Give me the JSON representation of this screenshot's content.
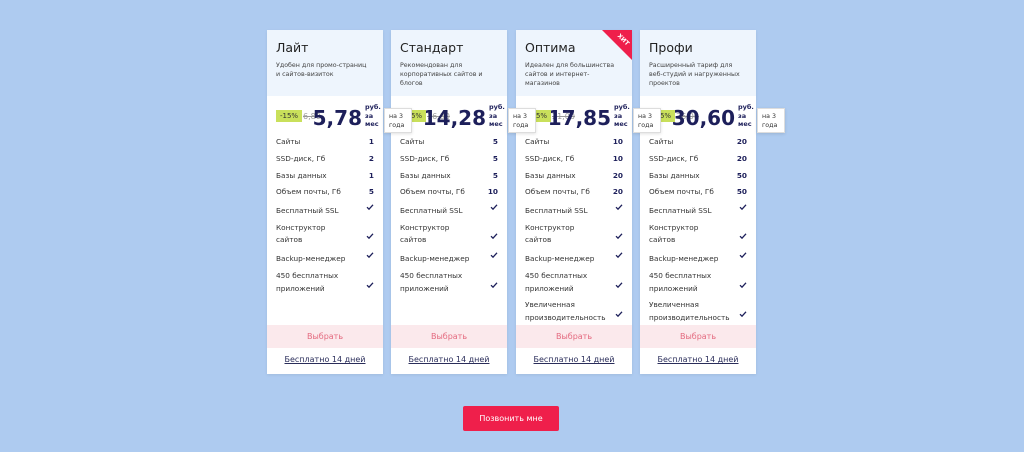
{
  "plans": [
    {
      "name": "Лайт",
      "description": "Удобен для промо-страниц и сайтов-визиток",
      "discount": "-15%",
      "old_price": "6,80",
      "price": "5,78",
      "unit": "руб. за мес",
      "period": "на 3 года",
      "features": [
        {
          "label": "Сайты",
          "value": 1
        },
        {
          "label": "SSD-диск, Гб",
          "value": 2
        },
        {
          "label": "Базы данных",
          "value": 1
        },
        {
          "label": "Объем почты, Гб",
          "value": 5
        },
        {
          "label": "Бесплатный SSL"
        },
        {
          "label": "Конструктор сайтов"
        },
        {
          "label": "Backup-менеджер"
        },
        {
          "label": "450 бесплатных приложений"
        }
      ],
      "select": "Выбрать",
      "trial": "Бесплатно 14 дней"
    },
    {
      "name": "Стандарт",
      "description": "Рекомендован для корпоративных сайтов и блогов",
      "discount": "-15%",
      "old_price": "16,80",
      "price": "14,28",
      "unit": "руб. за мес",
      "period": "на 3 года",
      "features": [
        {
          "label": "Сайты",
          "value": 5
        },
        {
          "label": "SSD-диск, Гб",
          "value": 5
        },
        {
          "label": "Базы данных",
          "value": 5
        },
        {
          "label": "Объем почты, Гб",
          "value": 10
        },
        {
          "label": "Бесплатный SSL"
        },
        {
          "label": "Конструктор сайтов"
        },
        {
          "label": "Backup-менеджер"
        },
        {
          "label": "450 бесплатных приложений"
        }
      ],
      "select": "Выбрать",
      "trial": "Бесплатно 14 дней"
    },
    {
      "name": "Оптима",
      "badge": "ХИТ",
      "description": "Идеален для большинства сайтов и интернет-магазинов",
      "discount": "-15%",
      "old_price": "21,00",
      "price": "17,85",
      "unit": "руб. за мес",
      "period": "на 3 года",
      "features": [
        {
          "label": "Сайты",
          "value": 10
        },
        {
          "label": "SSD-диск, Гб",
          "value": 10
        },
        {
          "label": "Базы данных",
          "value": 20
        },
        {
          "label": "Объем почты, Гб",
          "value": 20
        },
        {
          "label": "Бесплатный SSL"
        },
        {
          "label": "Конструктор сайтов"
        },
        {
          "label": "Backup-менеджер"
        },
        {
          "label": "450 бесплатных приложений"
        },
        {
          "label": "Увеличенная производительность"
        }
      ],
      "select": "Выбрать",
      "trial": "Бесплатно 14 дней"
    },
    {
      "name": "Профи",
      "description": "Расширенный тариф для веб-студий и нагруженных проектов",
      "discount": "-15%",
      "old_price": "36,00",
      "price": "30,60",
      "unit": "руб. за мес",
      "period": "на 3 года",
      "features": [
        {
          "label": "Сайты",
          "value": 20
        },
        {
          "label": "SSD-диск, Гб",
          "value": 20
        },
        {
          "label": "Базы данных",
          "value": 50
        },
        {
          "label": "Объем почты, Гб",
          "value": 50
        },
        {
          "label": "Бесплатный SSL"
        },
        {
          "label": "Конструктор сайтов"
        },
        {
          "label": "Backup-менеджер"
        },
        {
          "label": "450 бесплатных приложений"
        },
        {
          "label": "Увеличенная производительность"
        }
      ],
      "select": "Выбрать",
      "trial": "Бесплатно 14 дней"
    }
  ],
  "cta": "Позвонить мне"
}
